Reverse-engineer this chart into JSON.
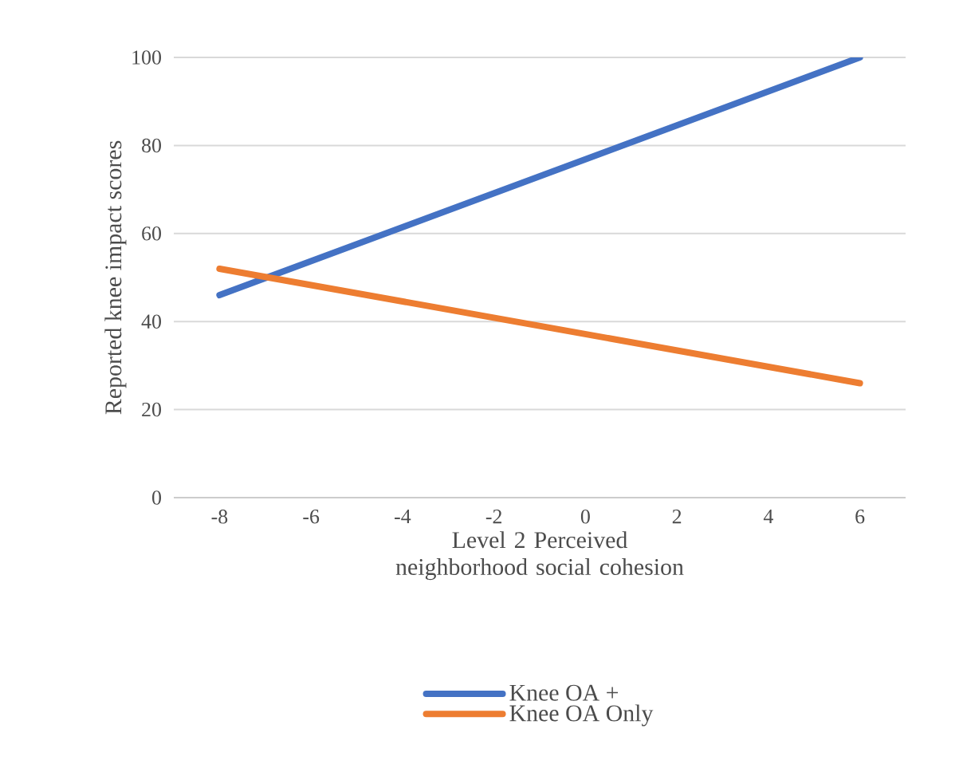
{
  "chart_data": {
    "type": "line",
    "xlabel": "Level 2 Perceived neighborhood social cohesion",
    "ylabel": "Reported knee impact scores",
    "x": [
      -8,
      6
    ],
    "series": [
      {
        "name": "Knee OA +",
        "color": "#4472c4",
        "values": [
          46,
          100
        ]
      },
      {
        "name": "Knee OA Only",
        "color": "#ed7d31",
        "values": [
          52,
          26
        ]
      }
    ],
    "xlim": [
      -9,
      7
    ],
    "xticks": [
      -8,
      -6,
      -4,
      -2,
      0,
      2,
      4,
      6
    ],
    "ylim": [
      0,
      100
    ],
    "yticks": [
      0,
      20,
      40,
      60,
      80,
      100
    ],
    "grid": "y",
    "legend": "bottom",
    "marker": "none",
    "line_style": "solid"
  }
}
